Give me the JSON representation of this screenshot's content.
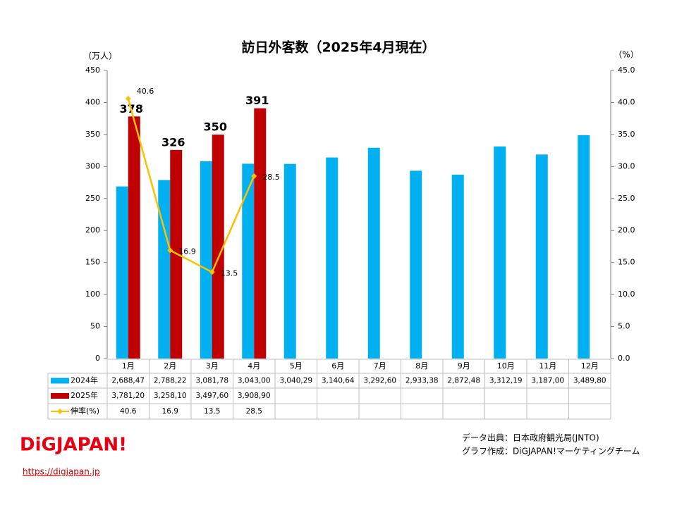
{
  "chart_data": {
    "type": "bar",
    "title": "訪日外客数（2025年4月現在）",
    "y_label": "（万人）",
    "y2_label": "（%）",
    "categories": [
      "1月",
      "2月",
      "3月",
      "4月",
      "5月",
      "6月",
      "7月",
      "8月",
      "9月",
      "10月",
      "11月",
      "12月"
    ],
    "series": [
      {
        "name": "2024年",
        "color": "#00b0f0",
        "values": [
          268.847,
          278.822,
          308.178,
          304.3,
          304.029,
          314.064,
          329.26,
          293.338,
          287.248,
          331.219,
          318.7,
          348.98
        ],
        "table_labels": [
          "2,688,47",
          "2,788,22",
          "3,081,78",
          "3,043,00",
          "3,040,29",
          "3,140,64",
          "3,292,60",
          "2,933,38",
          "2,872,48",
          "3,312,19",
          "3,187,00",
          "3,489,80"
        ]
      },
      {
        "name": "2025年",
        "color": "#c00000",
        "values": [
          378.12,
          325.81,
          349.76,
          390.89,
          null,
          null,
          null,
          null,
          null,
          null,
          null,
          null
        ],
        "value_labels": [
          "378",
          "326",
          "350",
          "391",
          null,
          null,
          null,
          null,
          null,
          null,
          null,
          null
        ],
        "table_labels": [
          "3,781,20",
          "3,258,10",
          "3,497,60",
          "3,908,90",
          null,
          null,
          null,
          null,
          null,
          null,
          null,
          null
        ]
      },
      {
        "name": "伸率(%)",
        "color": "#ffc000",
        "type": "line",
        "axis": "y2",
        "values": [
          40.6,
          16.9,
          13.5,
          28.5,
          null,
          null,
          null,
          null,
          null,
          null,
          null,
          null
        ]
      }
    ],
    "ylim": [
      0,
      450
    ],
    "yticks": [
      0,
      50,
      100,
      150,
      200,
      250,
      300,
      350,
      400,
      450
    ],
    "y2lim": [
      0,
      45
    ],
    "y2ticks": [
      {
        "value": 0,
        "label": "0.0"
      },
      {
        "value": 5,
        "label": "5.0"
      },
      {
        "value": 10,
        "label": "10.0"
      },
      {
        "value": 15,
        "label": "15.0"
      },
      {
        "value": 20,
        "label": "20.0"
      },
      {
        "value": 25,
        "label": "25.0"
      },
      {
        "value": 30,
        "label": "30.0"
      },
      {
        "value": 35,
        "label": "35.0"
      },
      {
        "value": 40,
        "label": "40.0"
      },
      {
        "value": 45,
        "label": "45.0"
      }
    ],
    "source": "データ出典：日本政府観光局(JNTO)",
    "credit": "グラフ作成：DiGJAPAN!マーケティングチーム",
    "logo": "DiGJAPAN!",
    "url": "https://digjapan.jp"
  }
}
